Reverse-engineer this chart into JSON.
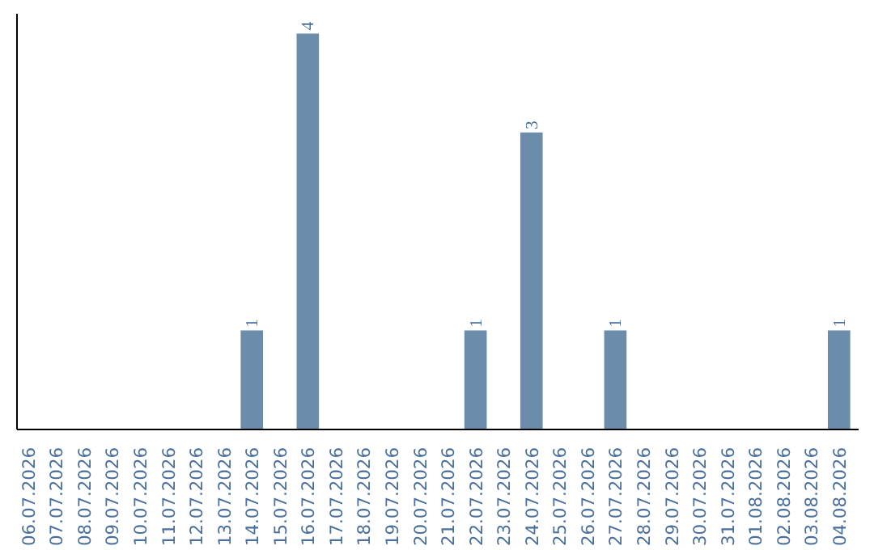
{
  "chart_data": {
    "type": "bar",
    "categories": [
      "06.07.2026",
      "07.07.2026",
      "08.07.2026",
      "09.07.2026",
      "10.07.2026",
      "11.07.2026",
      "12.07.2026",
      "13.07.2026",
      "14.07.2026",
      "15.07.2026",
      "16.07.2026",
      "17.07.2026",
      "18.07.2026",
      "19.07.2026",
      "20.07.2026",
      "21.07.2026",
      "22.07.2026",
      "23.07.2026",
      "24.07.2026",
      "25.07.2026",
      "26.07.2026",
      "27.07.2026",
      "28.07.2026",
      "29.07.2026",
      "30.07.2026",
      "31.07.2026",
      "01.08.2026",
      "02.08.2026",
      "03.08.2026",
      "04.08.2026"
    ],
    "values": [
      0,
      0,
      0,
      0,
      0,
      0,
      0,
      0,
      1,
      0,
      4,
      0,
      0,
      0,
      0,
      0,
      1,
      0,
      3,
      0,
      0,
      1,
      0,
      0,
      0,
      0,
      0,
      0,
      0,
      1
    ],
    "color": "#6c8cab",
    "value_labels": [
      null,
      null,
      null,
      null,
      null,
      null,
      null,
      null,
      "1",
      null,
      "4",
      null,
      null,
      null,
      null,
      null,
      "1",
      null,
      "3",
      null,
      null,
      "1",
      null,
      null,
      null,
      null,
      null,
      null,
      null,
      "1"
    ],
    "ylim": [
      0,
      4.2
    ],
    "tick_labels": "x",
    "grid": false
  }
}
